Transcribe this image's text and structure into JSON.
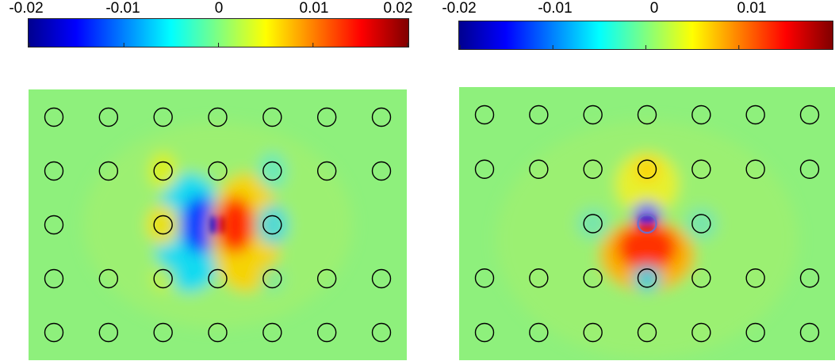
{
  "figures": [
    {
      "id": "left",
      "colorbar": {
        "ticks": [
          "-0.02",
          "-0.01",
          "0",
          "0.01",
          "0.02"
        ],
        "tick_values": [
          -0.02,
          -0.01,
          0,
          0.01,
          0.02
        ],
        "range": [
          -0.02,
          0.02
        ],
        "colormap": "jet"
      },
      "field": {
        "background": "#8ef07c",
        "lattice": {
          "columns": 7,
          "rows": 5,
          "missing": [
            [
              2,
              1
            ],
            [
              2,
              3
            ],
            [
              2,
              5
            ],
            [
              2,
              6
            ]
          ]
        },
        "defect": {
          "row": 2,
          "col": 3,
          "ring_color": "#6e6ec8"
        },
        "mode_orientation": "horizontal-dipole"
      }
    },
    {
      "id": "right",
      "colorbar": {
        "ticks": [
          "-0.02",
          "-0.01",
          "0",
          "0.01"
        ],
        "tick_values": [
          -0.02,
          -0.01,
          0,
          0.01
        ],
        "range": [
          -0.02,
          0.02
        ],
        "colormap": "jet"
      },
      "field": {
        "background": "#8ef07c",
        "lattice": {
          "columns": 7,
          "rows": 5,
          "missing": [
            [
              2,
              0
            ],
            [
              2,
              1
            ],
            [
              2,
              5
            ],
            [
              2,
              6
            ]
          ]
        },
        "defect": {
          "row": 2,
          "col": 3,
          "ring_color": "#6e6ec8"
        },
        "mode_orientation": "vertical-dipole"
      }
    }
  ]
}
